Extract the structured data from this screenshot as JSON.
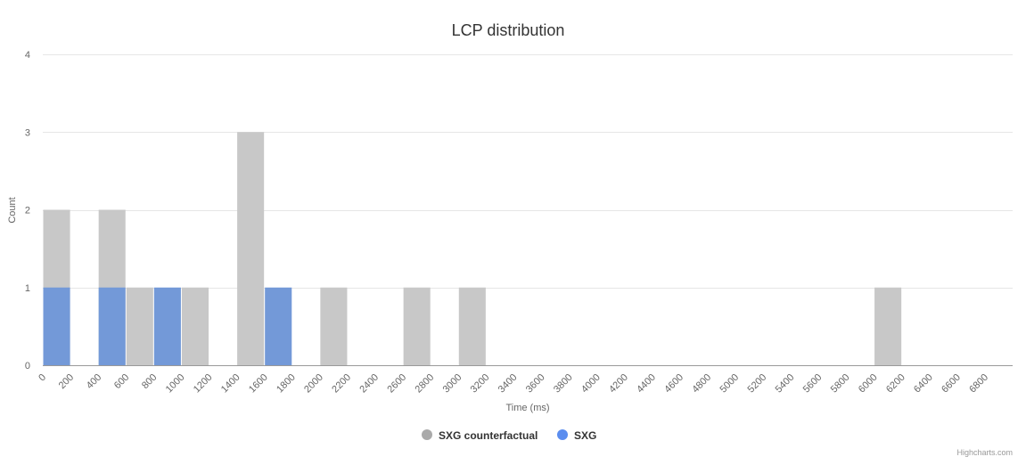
{
  "chart_data": {
    "type": "bar",
    "title": "LCP distribution",
    "xlabel": "Time (ms)",
    "ylabel": "Count",
    "xlim": [
      0,
      7000
    ],
    "ylim": [
      0,
      4
    ],
    "bin_width": 200,
    "x_ticks": [
      0,
      200,
      400,
      600,
      800,
      1000,
      1200,
      1400,
      1600,
      1800,
      2000,
      2200,
      2400,
      2600,
      2800,
      3000,
      3200,
      3400,
      3600,
      3800,
      4000,
      4200,
      4400,
      4600,
      4800,
      5000,
      5200,
      5400,
      5600,
      5800,
      6000,
      6200,
      6400,
      6600,
      6800
    ],
    "y_ticks": [
      0,
      1,
      2,
      3,
      4
    ],
    "grid": true,
    "legend_position": "bottom",
    "series": [
      {
        "name": "SXG counterfactual",
        "color": "#c8c8c8",
        "legend_color": "#aaaaaa",
        "bins": [
          {
            "x": 0,
            "count": 2
          },
          {
            "x": 400,
            "count": 2
          },
          {
            "x": 600,
            "count": 1
          },
          {
            "x": 1000,
            "count": 1
          },
          {
            "x": 1400,
            "count": 3
          },
          {
            "x": 2000,
            "count": 1
          },
          {
            "x": 2600,
            "count": 1
          },
          {
            "x": 3000,
            "count": 1
          },
          {
            "x": 6000,
            "count": 1
          }
        ]
      },
      {
        "name": "SXG",
        "color": "#7399d8",
        "legend_color": "#5b8def",
        "bins": [
          {
            "x": 0,
            "count": 1
          },
          {
            "x": 400,
            "count": 1
          },
          {
            "x": 800,
            "count": 1
          },
          {
            "x": 1600,
            "count": 1
          }
        ]
      }
    ]
  },
  "credits": "Highcharts.com"
}
